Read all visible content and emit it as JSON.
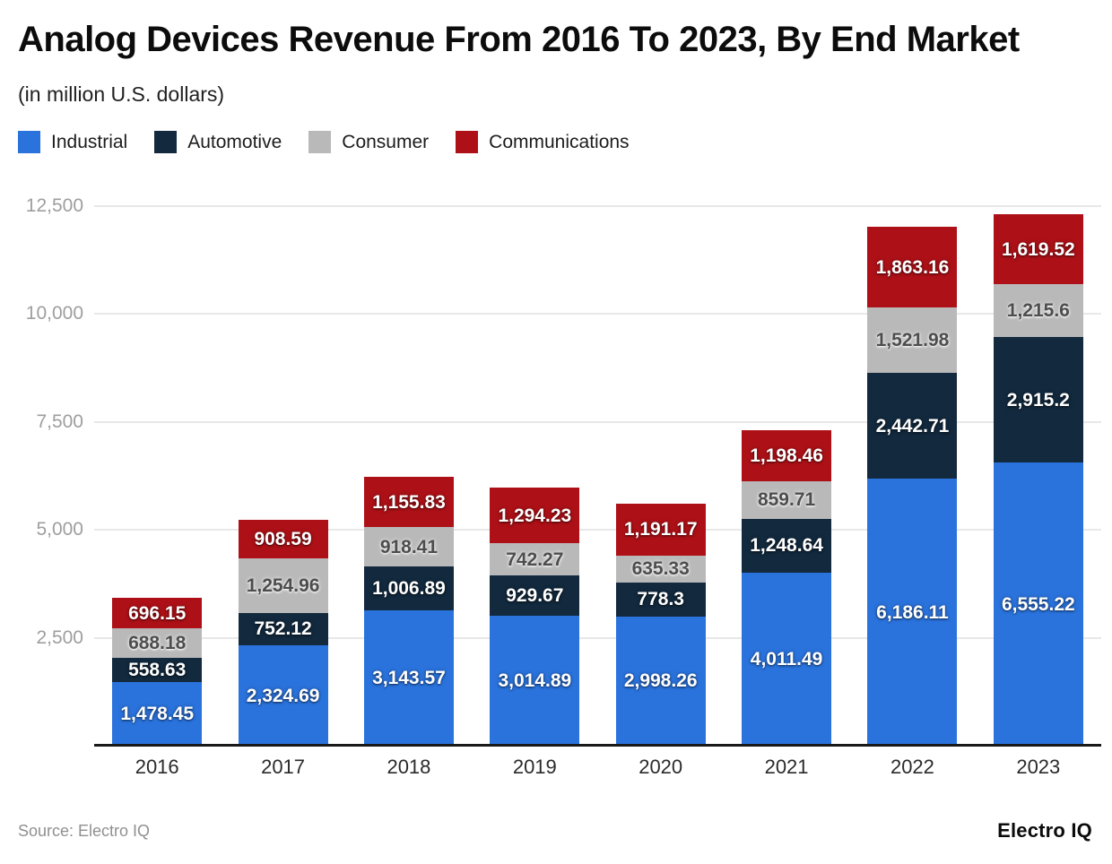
{
  "header": {
    "title": "Analog Devices Revenue From 2016 To 2023, By End Market",
    "subtitle": "(in million U.S. dollars)"
  },
  "chart_data": {
    "type": "bar",
    "stacked": true,
    "title": "Analog Devices Revenue From 2016 To 2023, By End Market",
    "subtitle": "(in million U.S. dollars)",
    "categories": [
      "2016",
      "2017",
      "2018",
      "2019",
      "2020",
      "2021",
      "2022",
      "2023"
    ],
    "series": [
      {
        "name": "Industrial",
        "color": "#2a73dd",
        "label_style": "light",
        "values": [
          1478.45,
          2324.69,
          3143.57,
          3014.89,
          2998.26,
          4011.49,
          6186.11,
          6555.22
        ]
      },
      {
        "name": "Automotive",
        "color": "#12293e",
        "label_style": "light",
        "values": [
          558.63,
          752.12,
          1006.89,
          929.67,
          778.3,
          1248.64,
          2442.71,
          2915.2
        ]
      },
      {
        "name": "Consumer",
        "color": "#b9b9b9",
        "label_style": "dark",
        "values": [
          688.18,
          1254.96,
          918.41,
          742.27,
          635.33,
          859.71,
          1521.98,
          1215.6
        ]
      },
      {
        "name": "Communications",
        "color": "#ad1117",
        "label_style": "light",
        "values": [
          696.15,
          908.59,
          1155.83,
          1294.23,
          1191.17,
          1198.46,
          1863.16,
          1619.52
        ]
      }
    ],
    "ylim": [
      0,
      12500
    ],
    "yticks": [
      2500,
      5000,
      7500,
      10000,
      12500
    ],
    "grid": true,
    "legend_position": "top",
    "value_labels": true,
    "colors": {
      "grid": "#e8e8e8",
      "axis_line": "#191919",
      "ytick_text": "#9e9e9e",
      "xtick_text": "#2a2a2a"
    }
  },
  "footer": {
    "source": "Source: Electro IQ",
    "brand": "Electro IQ"
  }
}
